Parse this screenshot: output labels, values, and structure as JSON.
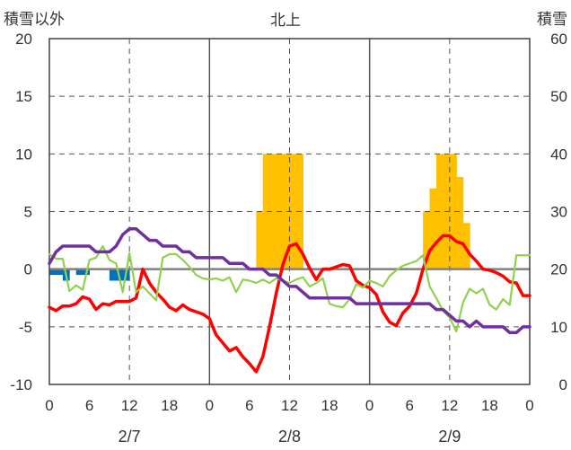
{
  "chart_data": {
    "type": "line",
    "title": "北上",
    "ylabel_left": "積雪以外",
    "ylabel_right": "積雪",
    "ylim_left": [
      -10,
      20
    ],
    "ylim_right": [
      0,
      60
    ],
    "yticks_left": [
      "-10",
      "-5",
      "0",
      "5",
      "10",
      "15",
      "20"
    ],
    "yticks_right": [
      "0",
      "10",
      "20",
      "30",
      "40",
      "50",
      "60"
    ],
    "x_hour_labels": [
      "0",
      "6",
      "12",
      "18",
      "0",
      "6",
      "12",
      "18",
      "0",
      "6",
      "12",
      "18",
      "0"
    ],
    "date_labels": [
      "2/7",
      "2/8",
      "2/9"
    ],
    "x_hours_range": [
      0,
      72
    ],
    "colors": {
      "red": "#ff0000",
      "green": "#92d050",
      "purple": "#7030a0",
      "blue": "#0070c0",
      "orange": "#ffc000",
      "zero_line": "#808080",
      "grid": "#555555"
    },
    "series": [
      {
        "color": "red",
        "axis": "left",
        "x": [
          0,
          1,
          2,
          3,
          4,
          5,
          6,
          7,
          8,
          9,
          10,
          11,
          12,
          13,
          14,
          15,
          16,
          17,
          18,
          19,
          20,
          21,
          22,
          23,
          24,
          25,
          26,
          27,
          28,
          29,
          30,
          31,
          32,
          33,
          34,
          35,
          36,
          37,
          38,
          39,
          40,
          41,
          42,
          43,
          44,
          45,
          46,
          47,
          48,
          49,
          50,
          51,
          52,
          53,
          54,
          55,
          56,
          57,
          58,
          59,
          60,
          61,
          62,
          63,
          64,
          65,
          66,
          67,
          68,
          69,
          70,
          71,
          72
        ],
        "y": [
          -3.3,
          -3.6,
          -3.2,
          -3.2,
          -3.0,
          -2.4,
          -2.6,
          -3.5,
          -3.0,
          -3.1,
          -2.8,
          -2.8,
          -2.8,
          -2.5,
          0.0,
          -1.2,
          -2.0,
          -2.6,
          -3.3,
          -3.6,
          -3.1,
          -3.5,
          -3.7,
          -3.9,
          -4.3,
          -5.7,
          -6.4,
          -7.1,
          -6.8,
          -7.6,
          -8.2,
          -8.9,
          -7.6,
          -5.0,
          -2.1,
          0.4,
          2.0,
          2.2,
          1.3,
          0.1,
          -0.9,
          0.0,
          0.0,
          0.2,
          0.4,
          0.3,
          -1.0,
          -1.4,
          -1.6,
          -2.2,
          -3.7,
          -4.6,
          -4.9,
          -3.8,
          -3.2,
          -2.1,
          0.0,
          1.6,
          2.3,
          2.9,
          2.9,
          2.4,
          2.2,
          1.3,
          0.7,
          0.0,
          -0.1,
          -0.3,
          -0.6,
          -1.1,
          -1.2,
          -2.3,
          -2.3
        ]
      },
      {
        "color": "green",
        "axis": "left",
        "x": [
          0,
          1,
          2,
          3,
          4,
          5,
          6,
          7,
          8,
          9,
          10,
          11,
          12,
          13,
          14,
          15,
          16,
          17,
          18,
          19,
          20,
          21,
          22,
          23,
          24,
          25,
          26,
          27,
          28,
          29,
          30,
          31,
          32,
          33,
          34,
          35,
          36,
          37,
          38,
          39,
          40,
          41,
          42,
          43,
          44,
          45,
          46,
          47,
          48,
          49,
          50,
          51,
          52,
          53,
          54,
          55,
          56,
          57,
          58,
          59,
          60,
          61,
          62,
          63,
          64,
          65,
          66,
          67,
          68,
          69,
          70,
          71,
          72
        ],
        "y": [
          1.3,
          0.9,
          0.9,
          -1.9,
          -1.4,
          -1.8,
          0.8,
          1.0,
          2.0,
          0.8,
          0.5,
          -2.0,
          1.4,
          -2.0,
          -1.5,
          -2.1,
          -2.7,
          1.0,
          1.3,
          1.3,
          0.8,
          0.2,
          -0.5,
          -0.8,
          -0.9,
          -0.8,
          -1.0,
          -0.7,
          -2.0,
          -0.9,
          -1.0,
          -1.2,
          -0.9,
          -1.2,
          -0.8,
          -1.0,
          -1.2,
          -0.9,
          -0.7,
          -1.5,
          -1.2,
          -0.8,
          -3.0,
          -3.2,
          -3.3,
          -2.6,
          -1.3,
          -1.6,
          -1.0,
          -1.2,
          -1.5,
          -0.6,
          -0.1,
          0.3,
          0.5,
          0.7,
          1.2,
          -1.5,
          -2.5,
          -3.6,
          -4.2,
          -5.4,
          -2.9,
          -1.7,
          -2.1,
          -1.7,
          -3.1,
          -3.5,
          -2.6,
          -3.1,
          1.2,
          1.2,
          1.2
        ]
      },
      {
        "color": "purple",
        "axis": "left",
        "x": [
          0,
          1,
          2,
          3,
          4,
          5,
          6,
          7,
          8,
          9,
          10,
          11,
          12,
          13,
          14,
          15,
          16,
          17,
          18,
          19,
          20,
          21,
          22,
          23,
          24,
          25,
          26,
          27,
          28,
          29,
          30,
          31,
          32,
          33,
          34,
          35,
          36,
          37,
          38,
          39,
          40,
          41,
          42,
          43,
          44,
          45,
          46,
          47,
          48,
          49,
          50,
          51,
          52,
          53,
          54,
          55,
          56,
          57,
          58,
          59,
          60,
          61,
          62,
          63,
          64,
          65,
          66,
          67,
          68,
          69,
          70,
          71,
          72
        ],
        "y": [
          0.5,
          1.5,
          2.0,
          2.0,
          2.0,
          2.0,
          2.0,
          1.5,
          1.5,
          1.5,
          2.0,
          3.0,
          3.5,
          3.5,
          3.0,
          2.5,
          2.5,
          2.0,
          2.0,
          2.0,
          1.5,
          1.5,
          1.0,
          1.0,
          1.0,
          1.0,
          1.0,
          0.5,
          0.5,
          0.5,
          0.0,
          0.0,
          0.0,
          -0.5,
          -0.5,
          -1.0,
          -1.5,
          -1.5,
          -2.0,
          -2.5,
          -2.5,
          -2.5,
          -2.5,
          -2.5,
          -2.5,
          -2.5,
          -3.0,
          -3.0,
          -3.0,
          -3.0,
          -3.0,
          -3.0,
          -3.0,
          -3.0,
          -3.0,
          -3.0,
          -3.0,
          -3.0,
          -3.5,
          -3.5,
          -4.0,
          -4.5,
          -4.5,
          -5.0,
          -4.5,
          -5.0,
          -5.0,
          -5.0,
          -5.0,
          -5.5,
          -5.5,
          -5.0,
          -5.0
        ]
      }
    ],
    "bars_blue": {
      "axis": "left",
      "x": [
        0.5,
        1.5,
        2.5,
        4.5,
        5.5,
        9.5,
        10.5,
        11.5
      ],
      "y": [
        -0.5,
        -0.5,
        -1.0,
        -0.5,
        -0.5,
        -1.0,
        -1.0,
        -1.0
      ]
    },
    "bars_orange": {
      "axis": "right",
      "x": [
        31.5,
        32.5,
        33.5,
        34.5,
        35.5,
        36.5,
        37.5,
        56.5,
        57.5,
        58.5,
        59.5,
        60.5,
        61.5,
        62.5
      ],
      "y": [
        30,
        40,
        40,
        40,
        40,
        40,
        40,
        30,
        34,
        40,
        40,
        40,
        36,
        28
      ]
    }
  }
}
